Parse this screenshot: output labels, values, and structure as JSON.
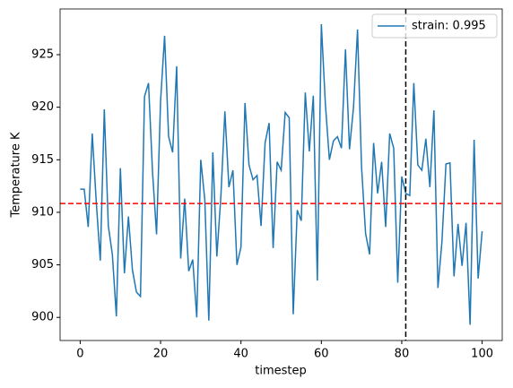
{
  "chart_data": {
    "type": "line",
    "x_label": "timestep",
    "y_label": "Temperature K",
    "x": [
      0,
      1,
      2,
      3,
      4,
      5,
      6,
      7,
      8,
      9,
      10,
      11,
      12,
      13,
      14,
      15,
      16,
      17,
      18,
      19,
      20,
      21,
      22,
      23,
      24,
      25,
      26,
      27,
      28,
      29,
      30,
      31,
      32,
      33,
      34,
      35,
      36,
      37,
      38,
      39,
      40,
      41,
      42,
      43,
      44,
      45,
      46,
      47,
      48,
      49,
      50,
      51,
      52,
      53,
      54,
      55,
      56,
      57,
      58,
      59,
      60,
      61,
      62,
      63,
      64,
      65,
      66,
      67,
      68,
      69,
      70,
      71,
      72,
      73,
      74,
      75,
      76,
      77,
      78,
      79,
      80,
      81,
      82,
      83,
      84,
      85,
      86,
      87,
      88,
      89,
      90,
      91,
      92,
      93,
      94,
      95,
      96,
      97,
      98,
      99,
      100
    ],
    "series": [
      {
        "name": "strain: 0.995",
        "color": "#1f77b4",
        "values": [
          912.2,
          912.2,
          908.6,
          917.5,
          911,
          905.4,
          919.8,
          908.7,
          906,
          900.1,
          914.2,
          904.2,
          909.6,
          904.5,
          902.4,
          902,
          921,
          922.3,
          913.8,
          907.9,
          920.6,
          926.8,
          917.2,
          915.7,
          923.9,
          905.6,
          911.3,
          904.4,
          905.5,
          900,
          915,
          911.2,
          899.7,
          915.7,
          905.8,
          911.5,
          919.6,
          912.4,
          914,
          905,
          906.7,
          920.4,
          914.5,
          913.1,
          913.5,
          908.7,
          916.6,
          918.5,
          906.6,
          914.8,
          914,
          919.5,
          919,
          900.3,
          910.2,
          909.2,
          921.4,
          915.8,
          921.1,
          903.5,
          927.9,
          920.3,
          915,
          916.8,
          917.2,
          916.1,
          925.5,
          916,
          920,
          927.4,
          914.3,
          908,
          906,
          916.6,
          911.8,
          914.8,
          908.6,
          917.5,
          916.1,
          903.3,
          913.4,
          911.8,
          911.6,
          922.3,
          914.5,
          914,
          917,
          912.4,
          919.7,
          902.8,
          907.2,
          914.6,
          914.7,
          903.9,
          908.9,
          904.9,
          909,
          899.3,
          916.9,
          903.7,
          908.2
        ]
      }
    ],
    "hline": {
      "value": 910.84,
      "color": "#ff0000"
    },
    "vline": {
      "value": 81,
      "color": "#000000"
    },
    "xlim": [
      -5,
      105
    ],
    "ylim": [
      897.8,
      929.35
    ],
    "xticks": [
      0,
      20,
      40,
      60,
      80,
      100
    ],
    "yticks": [
      900,
      905,
      910,
      915,
      920,
      925
    ],
    "legend": "upper right"
  }
}
